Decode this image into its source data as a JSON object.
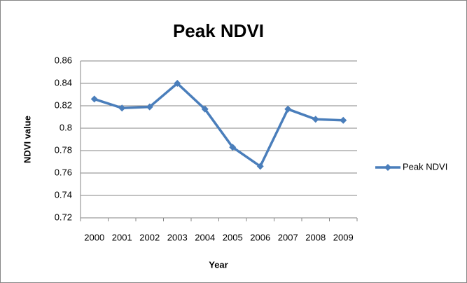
{
  "chart_data": {
    "type": "line",
    "title": "Peak NDVI",
    "xlabel": "Year",
    "ylabel": "NDVI value",
    "categories": [
      "2000",
      "2001",
      "2002",
      "2003",
      "2004",
      "2005",
      "2006",
      "2007",
      "2008",
      "2009"
    ],
    "series": [
      {
        "name": "Peak NDVI",
        "color": "#4a7ebb",
        "values": [
          0.826,
          0.818,
          0.819,
          0.84,
          0.817,
          0.783,
          0.766,
          0.817,
          0.808,
          0.807
        ]
      }
    ],
    "ylim": [
      0.72,
      0.86
    ],
    "yticks": [
      0.72,
      0.74,
      0.76,
      0.78,
      0.8,
      0.82,
      0.84,
      0.86
    ],
    "grid": true,
    "legend": "right"
  }
}
